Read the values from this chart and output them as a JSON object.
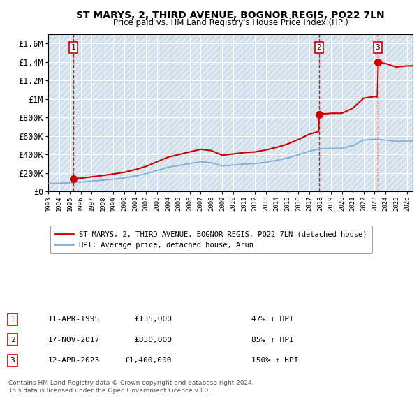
{
  "title": "ST MARYS, 2, THIRD AVENUE, BOGNOR REGIS, PO22 7LN",
  "subtitle": "Price paid vs. HM Land Registry's House Price Index (HPI)",
  "transactions": [
    {
      "num": 1,
      "date_year": 1995.29,
      "price": 135000,
      "label": "11-APR-1995",
      "pct": "47%"
    },
    {
      "num": 2,
      "date_year": 2017.88,
      "price": 830000,
      "label": "17-NOV-2017",
      "pct": "85%"
    },
    {
      "num": 3,
      "date_year": 2023.28,
      "price": 1400000,
      "label": "12-APR-2023",
      "pct": "150%"
    }
  ],
  "legend_line1": "ST MARYS, 2, THIRD AVENUE, BOGNOR REGIS, PO22 7LN (detached house)",
  "legend_line2": "HPI: Average price, detached house, Arun",
  "footer1": "Contains HM Land Registry data © Crown copyright and database right 2024.",
  "footer2": "This data is licensed under the Open Government Licence v3.0.",
  "price_line_color": "#cc0000",
  "hpi_line_color": "#7fb0d8",
  "background_color": "#dde8f0",
  "ylim": [
    0,
    1700000
  ],
  "yticks": [
    0,
    200000,
    400000,
    600000,
    800000,
    1000000,
    1200000,
    1400000,
    1600000
  ],
  "xstart": 1993,
  "xend": 2026.5,
  "hpi_anchors_x": [
    1993,
    1994,
    1995,
    1996,
    1997,
    1998,
    1999,
    2000,
    2001,
    2002,
    2003,
    2004,
    2005,
    2006,
    2007,
    2008,
    2009,
    2010,
    2011,
    2012,
    2013,
    2014,
    2015,
    2016,
    2017,
    2018,
    2019,
    2020,
    2021,
    2022,
    2023,
    2024,
    2025,
    2026
  ],
  "hpi_anchors_y": [
    82000,
    88000,
    93000,
    100000,
    110000,
    120000,
    132000,
    145000,
    165000,
    190000,
    225000,
    260000,
    280000,
    300000,
    320000,
    310000,
    275000,
    285000,
    295000,
    300000,
    315000,
    335000,
    360000,
    395000,
    435000,
    460000,
    465000,
    465000,
    495000,
    555000,
    565000,
    555000,
    540000,
    545000
  ]
}
